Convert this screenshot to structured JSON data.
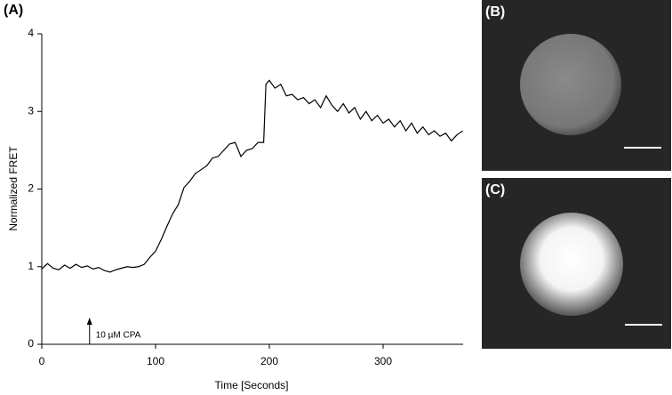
{
  "chart_data": {
    "type": "line",
    "panel_label": "(A)",
    "x_label": "Time [Seconds]",
    "y_label": "Normalized FRET",
    "x": [
      0,
      5,
      10,
      15,
      20,
      25,
      30,
      35,
      40,
      45,
      50,
      55,
      60,
      65,
      70,
      75,
      80,
      85,
      90,
      95,
      100,
      105,
      110,
      115,
      120,
      125,
      130,
      135,
      140,
      145,
      150,
      155,
      160,
      165,
      170,
      175,
      180,
      185,
      190,
      195,
      197,
      200,
      205,
      210,
      215,
      220,
      225,
      230,
      235,
      240,
      245,
      250,
      255,
      260,
      265,
      270,
      275,
      280,
      285,
      290,
      295,
      300,
      305,
      310,
      315,
      320,
      325,
      330,
      335,
      340,
      345,
      350,
      355,
      360,
      365,
      370
    ],
    "series": [
      {
        "name": "Normalized FRET",
        "color": "#000000",
        "values": [
          0.97,
          1.04,
          0.98,
          0.96,
          1.02,
          0.98,
          1.03,
          0.99,
          1.01,
          0.97,
          0.99,
          0.95,
          0.93,
          0.96,
          0.98,
          1.0,
          0.99,
          1.0,
          1.03,
          1.12,
          1.2,
          1.35,
          1.52,
          1.68,
          1.8,
          2.02,
          2.1,
          2.2,
          2.25,
          2.3,
          2.4,
          2.42,
          2.5,
          2.58,
          2.6,
          2.42,
          2.5,
          2.52,
          2.6,
          2.6,
          3.35,
          3.4,
          3.3,
          3.35,
          3.2,
          3.22,
          3.15,
          3.18,
          3.1,
          3.15,
          3.05,
          3.2,
          3.08,
          3.0,
          3.1,
          2.98,
          3.05,
          2.9,
          3.0,
          2.88,
          2.95,
          2.85,
          2.9,
          2.8,
          2.88,
          2.75,
          2.85,
          2.72,
          2.8,
          2.7,
          2.75,
          2.68,
          2.72,
          2.62,
          2.7,
          2.75
        ]
      }
    ],
    "xlim": [
      0,
      370
    ],
    "ylim": [
      0,
      4
    ],
    "xticks": [
      0,
      100,
      200,
      300
    ],
    "yticks": [
      0,
      1,
      2,
      3,
      4
    ],
    "annotation": {
      "text": "10 µM CPA",
      "x": 42
    }
  },
  "images": [
    {
      "label": "(B)"
    },
    {
      "label": "(C)"
    }
  ]
}
